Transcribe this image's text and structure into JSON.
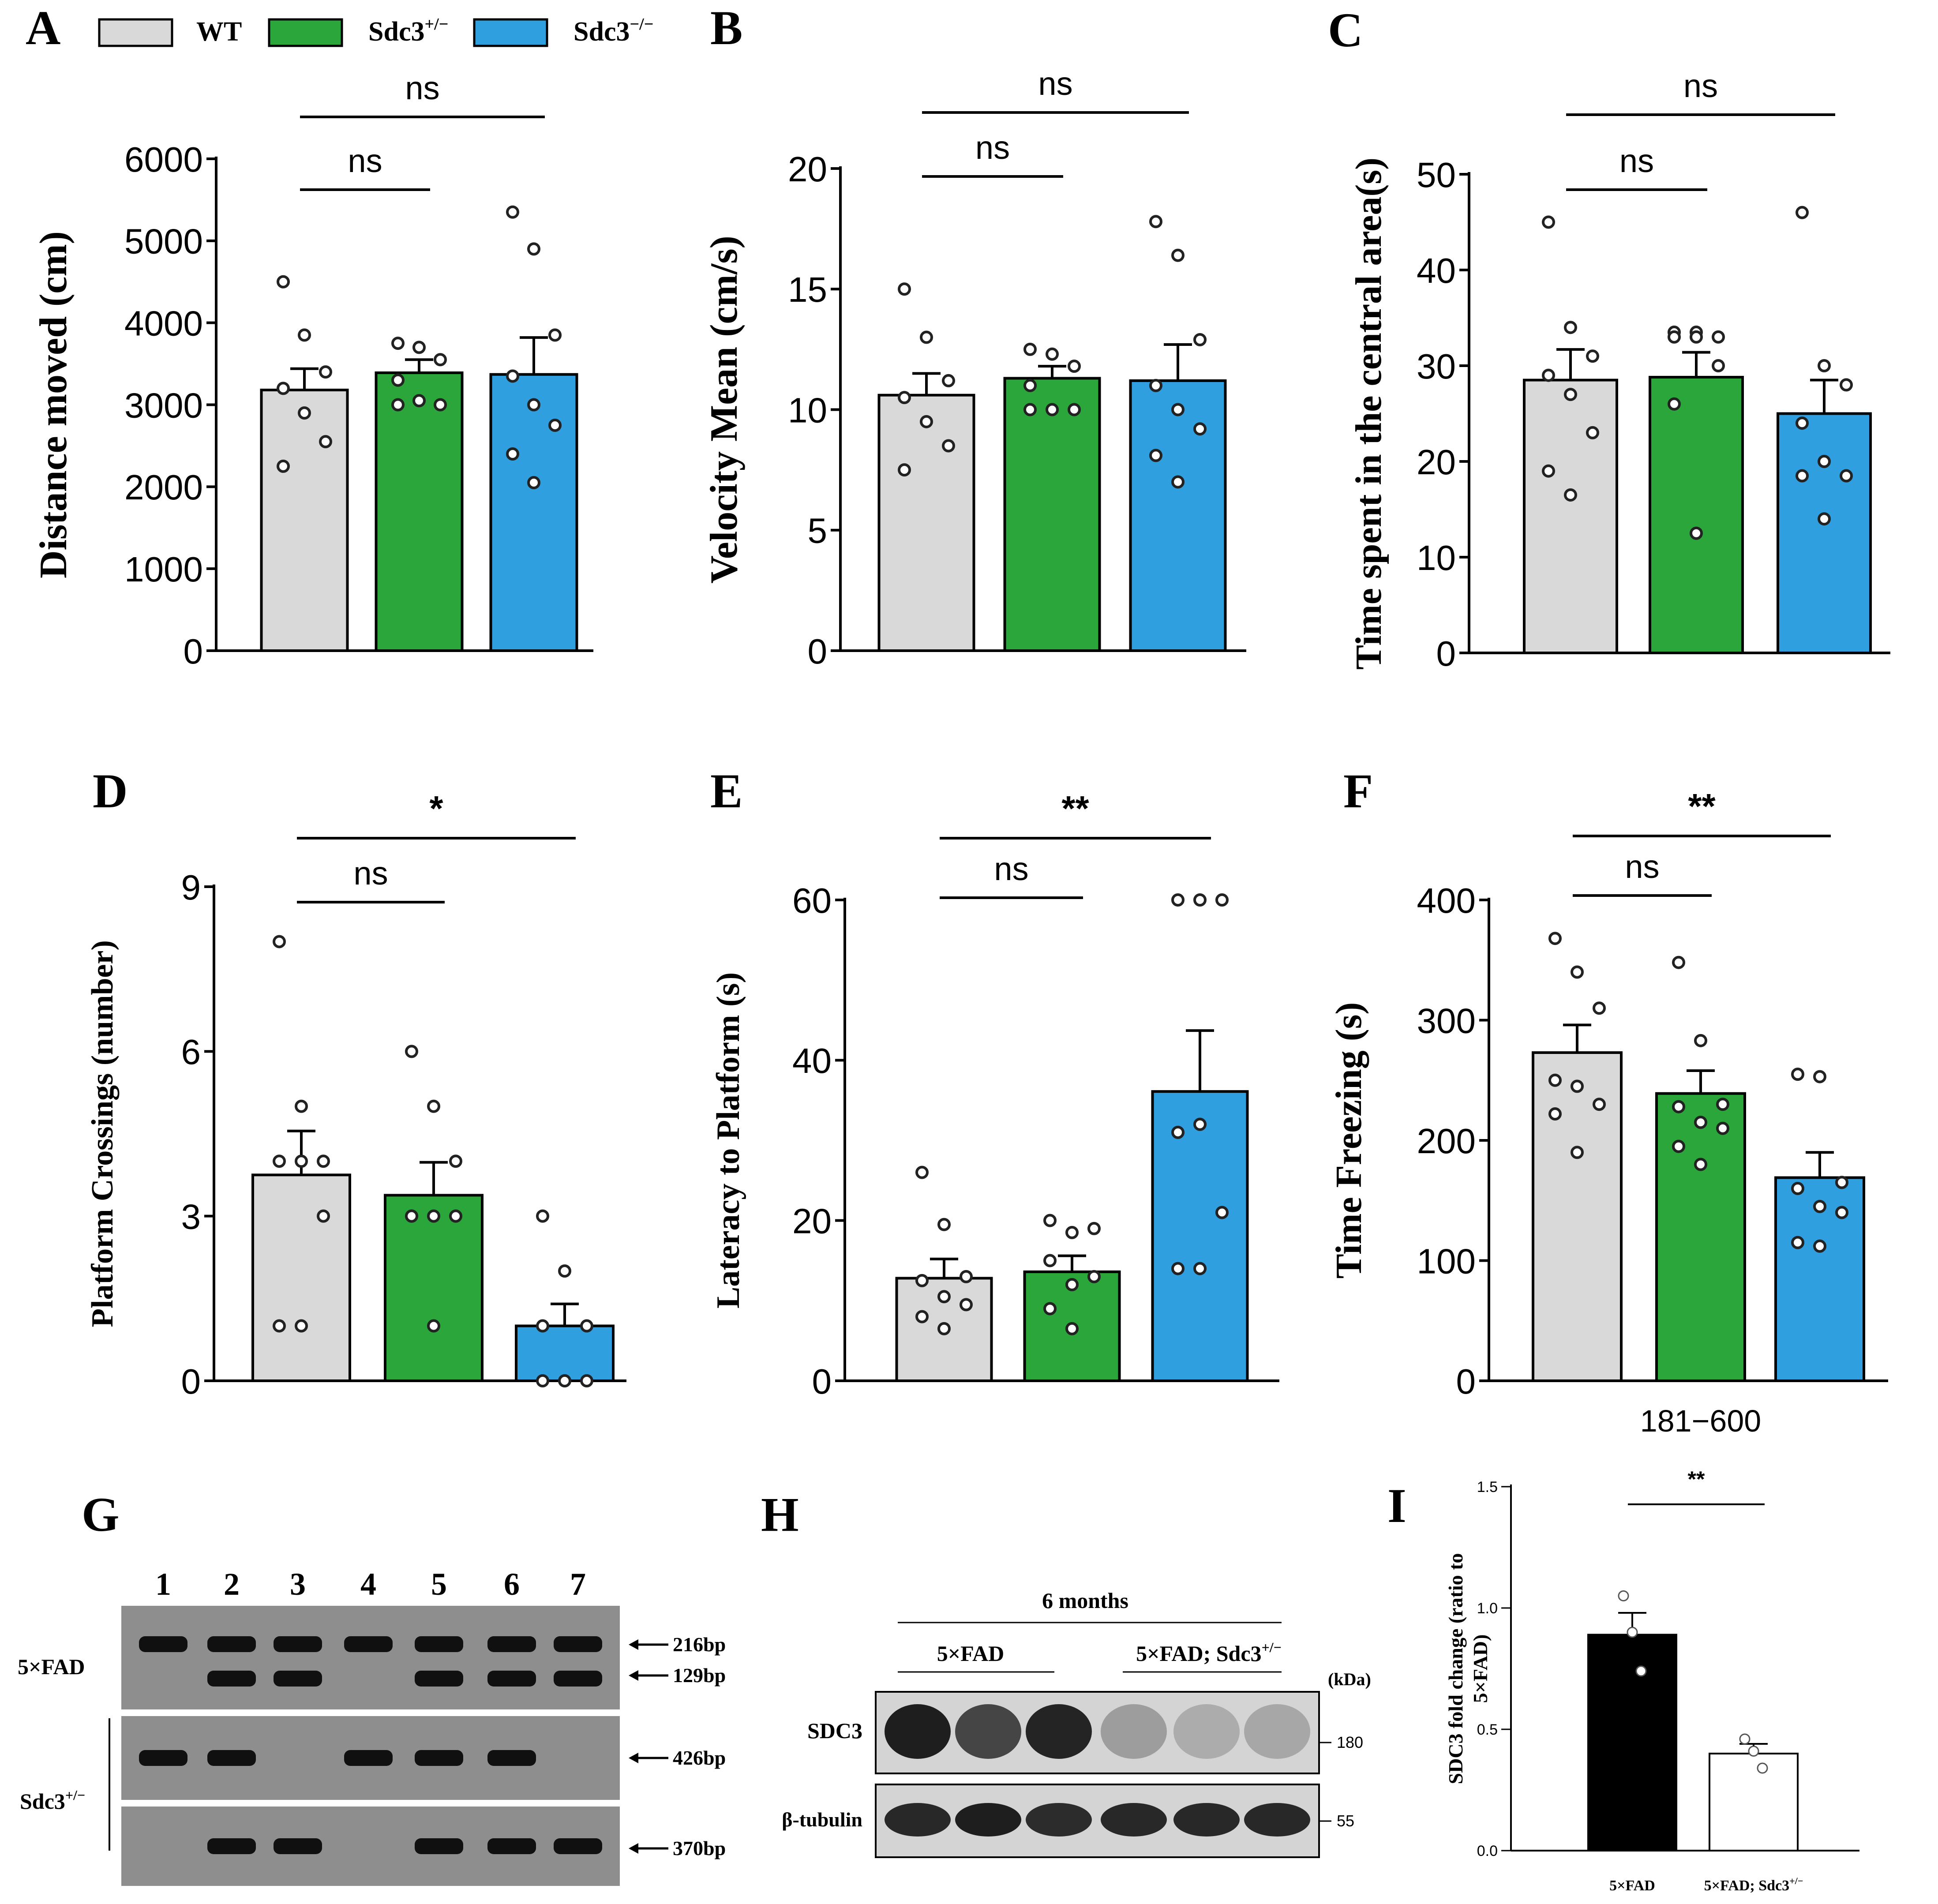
{
  "figure": {
    "legend": {
      "items": [
        {
          "label": "WT",
          "color": "#d9d9d9"
        },
        {
          "label": "Sdc3",
          "sup": "+/−",
          "color": "#2aa63a"
        },
        {
          "label": "Sdc3",
          "sup": "−/−",
          "color": "#2f9fe0"
        }
      ]
    },
    "panel_g": {
      "label": "G",
      "lanes": [
        "1",
        "2",
        "3",
        "4",
        "5",
        "6",
        "7"
      ],
      "row_labels": {
        "fad": "5×FAD",
        "sdc": "Sdc3",
        "sdc_sup": "+/−"
      },
      "bands": [
        {
          "label": "216bp",
          "lanes_present": [
            1,
            2,
            3,
            4,
            5,
            6,
            7
          ]
        },
        {
          "label": "129bp",
          "lanes_present": [
            2,
            3,
            5,
            6,
            7
          ]
        },
        {
          "label": "426bp",
          "lanes_present": [
            1,
            2,
            4,
            5,
            6
          ]
        },
        {
          "label": "370bp",
          "lanes_present": [
            2,
            3,
            5,
            6,
            7
          ]
        }
      ]
    },
    "panel_h": {
      "label": "H",
      "header": "6 months",
      "group1": "5×FAD",
      "group2": "5×FAD; Sdc3",
      "group2_sup": "+/−",
      "unit": "(kDa)",
      "rows": [
        {
          "name": "SDC3",
          "marker": "180",
          "intensities": [
            0.95,
            0.75,
            0.92,
            0.3,
            0.22,
            0.25
          ]
        },
        {
          "name": "β-tubulin",
          "marker": "55",
          "intensities": [
            0.9,
            0.95,
            0.88,
            0.9,
            0.9,
            0.9
          ]
        }
      ]
    }
  },
  "chart_data": [
    {
      "id": "A",
      "type": "bar",
      "label": "A",
      "ylabel": "Distance moved (cm)",
      "ylim": [
        0,
        6000
      ],
      "ticks": [
        0,
        1000,
        2000,
        3000,
        4000,
        5000,
        6000
      ],
      "categories": [
        "WT",
        "Sdc3+/−",
        "Sdc3−/−"
      ],
      "values": [
        3180,
        3390,
        3370
      ],
      "errors": [
        260,
        160,
        450
      ],
      "points": [
        [
          4500,
          3850,
          3400,
          3200,
          2900,
          2550,
          2250
        ],
        [
          3750,
          3700,
          3550,
          3300,
          3050,
          3000,
          3000
        ],
        [
          5350,
          4900,
          3850,
          3350,
          3000,
          2750,
          2400,
          2050
        ]
      ],
      "significance": [
        {
          "text": "ns",
          "from": 0,
          "to": 1
        },
        {
          "text": "ns",
          "from": 0,
          "to": 2
        }
      ],
      "xlabel": ""
    },
    {
      "id": "B",
      "type": "bar",
      "label": "B",
      "ylabel": "Velocity Mean (cm/s)",
      "ylim": [
        0,
        20
      ],
      "ticks": [
        0,
        5,
        10,
        15,
        20
      ],
      "categories": [
        "WT",
        "Sdc3+/−",
        "Sdc3−/−"
      ],
      "values": [
        10.6,
        11.3,
        11.2
      ],
      "errors": [
        0.9,
        0.5,
        1.5
      ],
      "points": [
        [
          15.0,
          13.0,
          11.2,
          10.5,
          9.5,
          8.5,
          7.5
        ],
        [
          12.5,
          12.3,
          11.8,
          11.0,
          10.0,
          10.0,
          10.0
        ],
        [
          17.8,
          16.4,
          12.9,
          11.0,
          10.0,
          9.2,
          8.1,
          7.0
        ]
      ],
      "significance": [
        {
          "text": "ns",
          "from": 0,
          "to": 1
        },
        {
          "text": "ns",
          "from": 0,
          "to": 2
        }
      ],
      "xlabel": ""
    },
    {
      "id": "C",
      "type": "bar",
      "label": "C",
      "ylabel": "Time spent in the central area(s)",
      "ylim": [
        0,
        50
      ],
      "ticks": [
        0,
        10,
        20,
        30,
        40,
        50
      ],
      "categories": [
        "WT",
        "Sdc3+/−",
        "Sdc3−/−"
      ],
      "values": [
        28.5,
        28.8,
        25.0
      ],
      "errors": [
        3.2,
        2.6,
        3.5
      ],
      "points": [
        [
          45.0,
          34.0,
          31.0,
          29.0,
          27.0,
          23.0,
          19.0,
          16.5
        ],
        [
          33.5,
          33.5,
          33.0,
          33.0,
          33.0,
          30.0,
          26.0,
          12.5
        ],
        [
          46.0,
          30.0,
          28.0,
          24.0,
          20.0,
          18.5,
          18.5,
          14.0
        ]
      ],
      "significance": [
        {
          "text": "ns",
          "from": 0,
          "to": 1
        },
        {
          "text": "ns",
          "from": 0,
          "to": 2
        }
      ],
      "xlabel": ""
    },
    {
      "id": "D",
      "type": "bar",
      "label": "D",
      "ylabel": "Platform Crossings (number)",
      "ylim": [
        0,
        9
      ],
      "ticks": [
        0,
        3,
        6,
        9
      ],
      "categories": [
        "WT",
        "Sdc3+/−",
        "Sdc3−/−"
      ],
      "values": [
        3.75,
        3.38,
        1.0
      ],
      "errors": [
        0.8,
        0.6,
        0.4
      ],
      "points": [
        [
          8,
          5,
          4,
          4,
          4,
          3,
          1,
          1
        ],
        [
          6,
          5,
          4,
          3,
          3,
          3,
          3,
          1
        ],
        [
          3,
          2,
          1,
          1,
          0,
          0,
          0,
          0
        ]
      ],
      "significance": [
        {
          "text": "ns",
          "from": 0,
          "to": 1
        },
        {
          "text": "*",
          "from": 0,
          "to": 2
        }
      ],
      "xlabel": ""
    },
    {
      "id": "E",
      "type": "bar",
      "label": "E",
      "ylabel": "Lateracy to Platform (s)",
      "ylim": [
        0,
        60
      ],
      "ticks": [
        0,
        20,
        40,
        60
      ],
      "categories": [
        "WT",
        "Sdc3+/−",
        "Sdc3−/−"
      ],
      "values": [
        12.8,
        13.6,
        36.1
      ],
      "errors": [
        2.4,
        2.0,
        7.6
      ],
      "points": [
        [
          26.0,
          19.5,
          13.0,
          12.5,
          10.5,
          9.5,
          8.0,
          6.5
        ],
        [
          20.0,
          18.5,
          19.0,
          15.0,
          12.0,
          13.0,
          9.0,
          6.5
        ],
        [
          60,
          60,
          60,
          31.0,
          32.0,
          21.0,
          14.0,
          14.0
        ]
      ],
      "significance": [
        {
          "text": "ns",
          "from": 0,
          "to": 1
        },
        {
          "text": "**",
          "from": 0,
          "to": 2
        }
      ],
      "xlabel": ""
    },
    {
      "id": "F",
      "type": "bar",
      "label": "F",
      "ylabel": "Time Freezing (s)",
      "ylim": [
        0,
        400
      ],
      "ticks": [
        0,
        100,
        200,
        300,
        400
      ],
      "categories": [
        "WT",
        "Sdc3+/−",
        "Sdc3−/−"
      ],
      "values": [
        273,
        239,
        169
      ],
      "errors": [
        23,
        19,
        21
      ],
      "points": [
        [
          368,
          340,
          310,
          250,
          245,
          230,
          222,
          190
        ],
        [
          348,
          283,
          230,
          228,
          215,
          210,
          195,
          180
        ],
        [
          255,
          253,
          165,
          160,
          145,
          140,
          115,
          112
        ]
      ],
      "significance": [
        {
          "text": "ns",
          "from": 0,
          "to": 1
        },
        {
          "text": "**",
          "from": 0,
          "to": 2
        }
      ],
      "xlabel": "181−600"
    },
    {
      "id": "I",
      "type": "bar",
      "label": "I",
      "ylabel_line1": "SDC3 fold change (ratio to",
      "ylabel_line2": "5×FAD)",
      "ylim": [
        0,
        1.5
      ],
      "ticks": [
        0.0,
        0.5,
        1.0,
        1.5
      ],
      "tick_labels": [
        "0.0",
        "0.5",
        "1.0",
        "1.5"
      ],
      "categories": [
        "5×FAD",
        "5×FAD; Sdc3"
      ],
      "category_sup": [
        "",
        "+/−"
      ],
      "values": [
        0.89,
        0.4
      ],
      "errors": [
        0.09,
        0.04
      ],
      "bar_colors": [
        "#000000",
        "#ffffff"
      ],
      "points": [
        [
          1.05,
          0.9,
          0.74
        ],
        [
          0.46,
          0.41,
          0.34
        ]
      ],
      "significance": [
        {
          "text": "**",
          "from": 0,
          "to": 1
        }
      ]
    }
  ]
}
